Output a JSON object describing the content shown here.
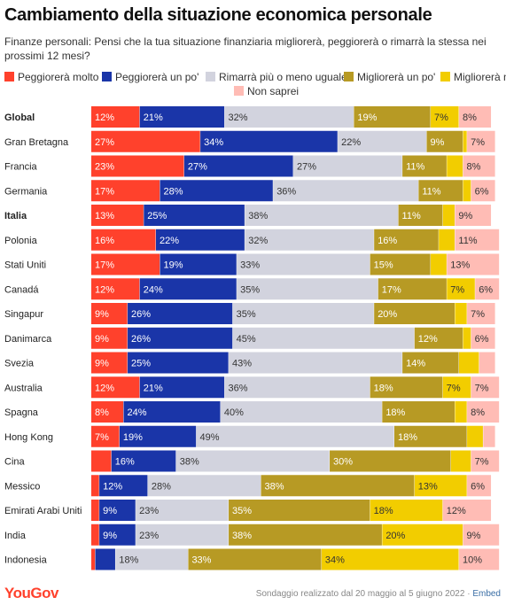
{
  "title": "Cambiamento della situazione economica personale",
  "subtitle": "Finanze personali: Pensi che la tua situazione finanziaria migliorerà, peggiorerà o rimarrà la stessa nei prossimi 12 mesi?",
  "legend": [
    {
      "label": "Peggiorerà molto",
      "color": "#ff412c"
    },
    {
      "label": "Peggiorerà un po'",
      "color": "#1a35a8"
    },
    {
      "label": "Rimarrà più o meno uguale",
      "color": "#d2d3de"
    },
    {
      "label": "Migliorerà un po'",
      "color": "#b79a24"
    },
    {
      "label": "Migliorerà molto",
      "color": "#f2cd00"
    },
    {
      "label": "Non saprei",
      "color": "#ffbcb5"
    }
  ],
  "footer": {
    "logo": "YouGov",
    "source": "Sondaggio realizzato dal 20 maggio al 5 giugno 2022 · ",
    "embed": "Embed"
  },
  "chart_data": {
    "type": "bar",
    "orientation": "horizontal",
    "stacked": true,
    "xlim": [
      0,
      100
    ],
    "categories": [
      "Global",
      "Gran Bretagna",
      "Francia",
      "Germania",
      "Italia",
      "Polonia",
      "Stati Uniti",
      "Canadá",
      "Singapur",
      "Danimarca",
      "Svezia",
      "Australia",
      "Spagna",
      "Hong Kong",
      "Cina",
      "Messico",
      "Emirati Arabi Uniti",
      "India",
      "Indonesia"
    ],
    "bold_categories": [
      "Global",
      "Italia"
    ],
    "series": [
      {
        "name": "Peggiorerà molto",
        "color": "#ff412c",
        "label_color": "#ffffff",
        "values": [
          12,
          27,
          23,
          17,
          13,
          16,
          17,
          12,
          9,
          9,
          9,
          12,
          8,
          7,
          5,
          2,
          2,
          2,
          1
        ]
      },
      {
        "name": "Peggiorerà un po'",
        "color": "#1a35a8",
        "label_color": "#ffffff",
        "values": [
          21,
          34,
          27,
          28,
          25,
          22,
          19,
          24,
          26,
          26,
          25,
          21,
          24,
          19,
          16,
          12,
          9,
          9,
          5
        ]
      },
      {
        "name": "Rimarrà più o meno uguale",
        "color": "#d2d3de",
        "label_color": "#333333",
        "values": [
          32,
          22,
          27,
          36,
          38,
          32,
          33,
          35,
          35,
          45,
          43,
          36,
          40,
          49,
          38,
          28,
          23,
          23,
          18
        ]
      },
      {
        "name": "Migliorerà un po'",
        "color": "#b79a24",
        "label_color": "#ffffff",
        "values": [
          19,
          9,
          11,
          11,
          11,
          16,
          15,
          17,
          20,
          12,
          14,
          18,
          18,
          18,
          30,
          38,
          35,
          38,
          33
        ]
      },
      {
        "name": "Migliorerà molto",
        "color": "#f2cd00",
        "label_color": "#333333",
        "values": [
          7,
          1,
          4,
          2,
          3,
          4,
          4,
          7,
          3,
          2,
          5,
          7,
          3,
          4,
          5,
          13,
          18,
          20,
          34
        ]
      },
      {
        "name": "Non saprei",
        "color": "#ffbcb5",
        "label_color": "#333333",
        "values": [
          8,
          7,
          8,
          6,
          9,
          11,
          13,
          6,
          7,
          6,
          4,
          7,
          8,
          3,
          7,
          6,
          12,
          9,
          10
        ]
      }
    ],
    "hidden_labels": [
      [],
      [
        "Migliorerà molto"
      ],
      [
        "Migliorerà molto"
      ],
      [
        "Migliorerà molto"
      ],
      [
        "Migliorerà molto"
      ],
      [
        "Migliorerà molto"
      ],
      [
        "Migliorerà molto"
      ],
      [],
      [
        "Migliorerà molto"
      ],
      [
        "Migliorerà molto"
      ],
      [
        "Migliorerà molto",
        "Non saprei"
      ],
      [],
      [
        "Migliorerà molto"
      ],
      [
        "Migliorerà molto",
        "Non saprei"
      ],
      [
        "Peggiorerà molto",
        "Migliorerà molto"
      ],
      [
        "Peggiorerà molto"
      ],
      [
        "Peggiorerà molto"
      ],
      [
        "Peggiorerà molto"
      ],
      [
        "Peggiorerà molto",
        "Peggiorerà un po'"
      ]
    ],
    "unit": "%"
  }
}
